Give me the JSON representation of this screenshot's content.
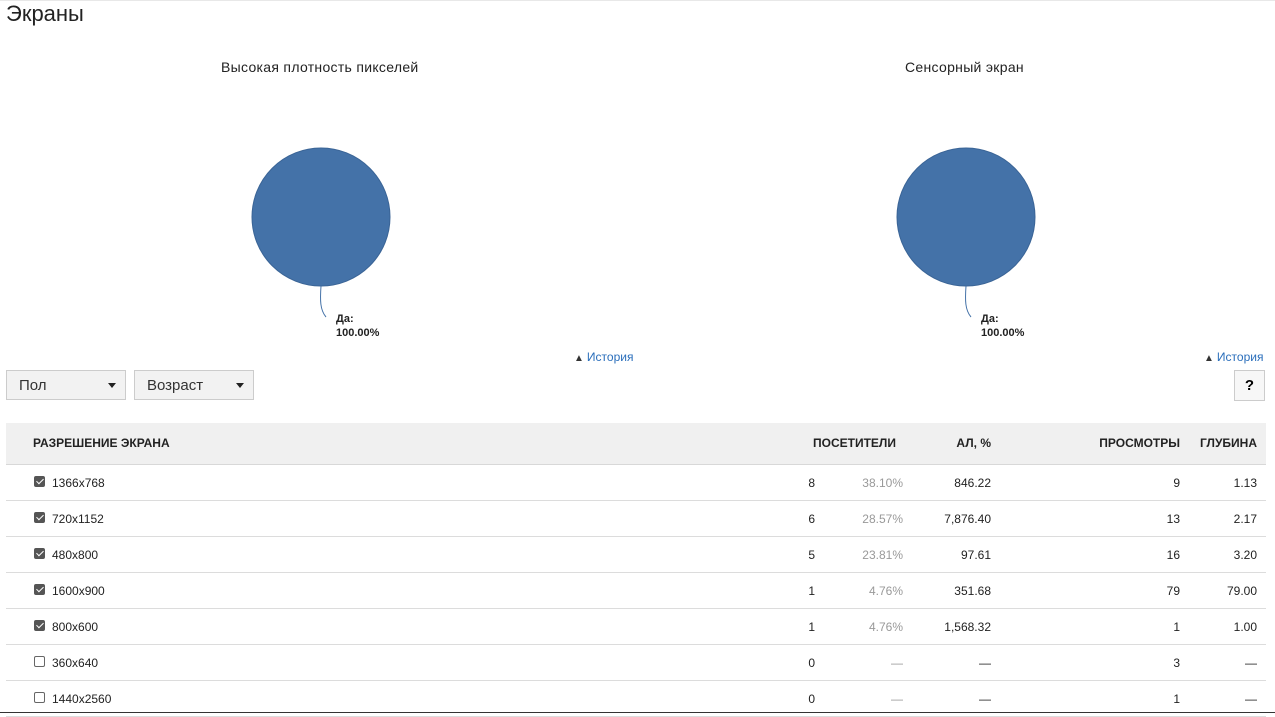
{
  "page": {
    "title": "Экраны"
  },
  "charts": [
    {
      "title": "Высокая плотность пикселей",
      "label_name": "Да:",
      "label_value": "100.00%",
      "history": "История"
    },
    {
      "title": "Сенсорный экран",
      "label_name": "Да:",
      "label_value": "100.00%",
      "history": "История"
    }
  ],
  "chart_data": [
    {
      "type": "pie",
      "title": "Высокая плотность пикселей",
      "categories": [
        "Да"
      ],
      "values": [
        100.0
      ],
      "colors": [
        "#4472a8"
      ]
    },
    {
      "type": "pie",
      "title": "Сенсорный экран",
      "categories": [
        "Да"
      ],
      "values": [
        100.0
      ],
      "colors": [
        "#4472a8"
      ]
    }
  ],
  "filters": {
    "gender": "Пол",
    "age": "Возраст",
    "help": "?"
  },
  "table": {
    "headers": {
      "resolution": "РАЗРЕШЕНИЕ ЭКРАНА",
      "visitors": "ПОСЕТИТЕЛИ",
      "al": "АЛ, %",
      "views": "ПРОСМОТРЫ",
      "depth": "ГЛУБИНА"
    },
    "rows": [
      {
        "checked": true,
        "resolution": "1366x768",
        "visitors": "8",
        "share": "38.10%",
        "al": "846.22",
        "views": "9",
        "depth": "1.13"
      },
      {
        "checked": true,
        "resolution": "720x1152",
        "visitors": "6",
        "share": "28.57%",
        "al": "7,876.40",
        "views": "13",
        "depth": "2.17"
      },
      {
        "checked": true,
        "resolution": "480x800",
        "visitors": "5",
        "share": "23.81%",
        "al": "97.61",
        "views": "16",
        "depth": "3.20"
      },
      {
        "checked": true,
        "resolution": "1600x900",
        "visitors": "1",
        "share": "4.76%",
        "al": "351.68",
        "views": "79",
        "depth": "79.00"
      },
      {
        "checked": true,
        "resolution": "800x600",
        "visitors": "1",
        "share": "4.76%",
        "al": "1,568.32",
        "views": "1",
        "depth": "1.00"
      },
      {
        "checked": false,
        "resolution": "360x640",
        "visitors": "0",
        "share": "—",
        "al": "—",
        "views": "3",
        "depth": "—"
      },
      {
        "checked": false,
        "resolution": "1440x2560",
        "visitors": "0",
        "share": "—",
        "al": "—",
        "views": "1",
        "depth": "—"
      }
    ]
  }
}
